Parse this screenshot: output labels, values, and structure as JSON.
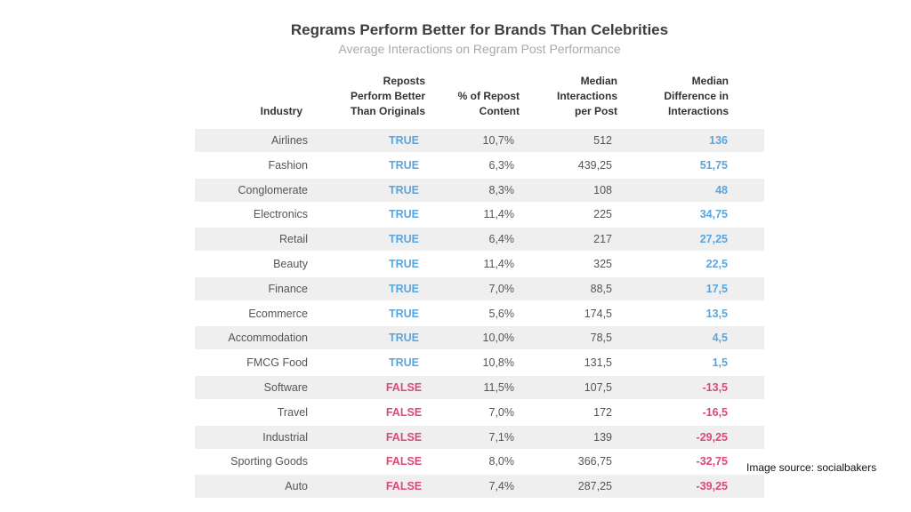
{
  "colors": {
    "true": "#5aa6dc",
    "false": "#d94a74",
    "band": "#efefef"
  },
  "chart_data": {
    "type": "table",
    "title": "Regrams Perform Better for Brands Than Celebrities",
    "subtitle": "Average Interactions on Regram Post Performance",
    "headers": {
      "industry": [
        "Industry"
      ],
      "reposts": [
        "Reposts",
        "Perform Better",
        "Than Originals"
      ],
      "pct": [
        "% of Repost",
        "Content"
      ],
      "median": [
        "Median",
        "Interactions",
        "per Post"
      ],
      "diff": [
        "Median",
        "Difference in",
        "Interactions"
      ]
    },
    "rows": [
      {
        "industry": "Airlines",
        "reposts": "TRUE",
        "pct": "10,7%",
        "median": "512",
        "diff": "136"
      },
      {
        "industry": "Fashion",
        "reposts": "TRUE",
        "pct": "6,3%",
        "median": "439,25",
        "diff": "51,75"
      },
      {
        "industry": "Conglomerate",
        "reposts": "TRUE",
        "pct": "8,3%",
        "median": "108",
        "diff": "48"
      },
      {
        "industry": "Electronics",
        "reposts": "TRUE",
        "pct": "11,4%",
        "median": "225",
        "diff": "34,75"
      },
      {
        "industry": "Retail",
        "reposts": "TRUE",
        "pct": "6,4%",
        "median": "217",
        "diff": "27,25"
      },
      {
        "industry": "Beauty",
        "reposts": "TRUE",
        "pct": "11,4%",
        "median": "325",
        "diff": "22,5"
      },
      {
        "industry": "Finance",
        "reposts": "TRUE",
        "pct": "7,0%",
        "median": "88,5",
        "diff": "17,5"
      },
      {
        "industry": "Ecommerce",
        "reposts": "TRUE",
        "pct": "5,6%",
        "median": "174,5",
        "diff": "13,5"
      },
      {
        "industry": "Accommodation",
        "reposts": "TRUE",
        "pct": "10,0%",
        "median": "78,5",
        "diff": "4,5"
      },
      {
        "industry": "FMCG Food",
        "reposts": "TRUE",
        "pct": "10,8%",
        "median": "131,5",
        "diff": "1,5"
      },
      {
        "industry": "Software",
        "reposts": "FALSE",
        "pct": "11,5%",
        "median": "107,5",
        "diff": "-13,5"
      },
      {
        "industry": "Travel",
        "reposts": "FALSE",
        "pct": "7,0%",
        "median": "172",
        "diff": "-16,5"
      },
      {
        "industry": "Industrial",
        "reposts": "FALSE",
        "pct": "7,1%",
        "median": "139",
        "diff": "-29,25"
      },
      {
        "industry": "Sporting Goods",
        "reposts": "FALSE",
        "pct": "8,0%",
        "median": "366,75",
        "diff": "-32,75"
      },
      {
        "industry": "Auto",
        "reposts": "FALSE",
        "pct": "7,4%",
        "median": "287,25",
        "diff": "-39,25"
      }
    ]
  },
  "source": "Image source: socialbakers"
}
